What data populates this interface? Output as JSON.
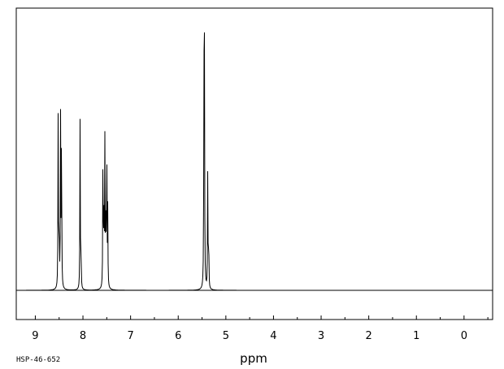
{
  "chart_data": {
    "type": "line",
    "xlabel": "ppm",
    "x_reversed": true,
    "xlim": [
      9.4,
      -0.6
    ],
    "ylim": [
      0,
      1.0
    ],
    "x_ticks": [
      9,
      8,
      7,
      6,
      5,
      4,
      3,
      2,
      1,
      0
    ],
    "x_tick_labels": [
      "9",
      "8",
      "7",
      "6",
      "5",
      "4",
      "3",
      "2",
      "1",
      "0"
    ],
    "series": [
      {
        "peaks": [
          {
            "ppm": 8.52,
            "height": 0.7
          },
          {
            "ppm": 8.5,
            "height": 0.25
          },
          {
            "ppm": 8.47,
            "height": 0.65
          },
          {
            "ppm": 8.45,
            "height": 0.66
          },
          {
            "ppm": 8.06,
            "height": 0.66
          },
          {
            "ppm": 8.04,
            "height": 0.15
          },
          {
            "ppm": 7.58,
            "height": 0.56
          },
          {
            "ppm": 7.56,
            "height": 0.34
          },
          {
            "ppm": 7.54,
            "height": 0.56
          },
          {
            "ppm": 7.52,
            "height": 0.3
          },
          {
            "ppm": 7.5,
            "height": 0.57
          },
          {
            "ppm": 7.48,
            "height": 0.3
          },
          {
            "ppm": 5.46,
            "height": 0.75
          },
          {
            "ppm": 5.45,
            "height": 0.99
          },
          {
            "ppm": 5.38,
            "height": 0.47
          },
          {
            "ppm": 5.36,
            "height": 0.2
          }
        ]
      }
    ],
    "grid": false,
    "legend": false
  },
  "footer": {
    "spectrum_id": "HSP-46-652"
  },
  "colors": {
    "trace": "#000000",
    "frame": "#000000",
    "background": "#ffffff"
  }
}
